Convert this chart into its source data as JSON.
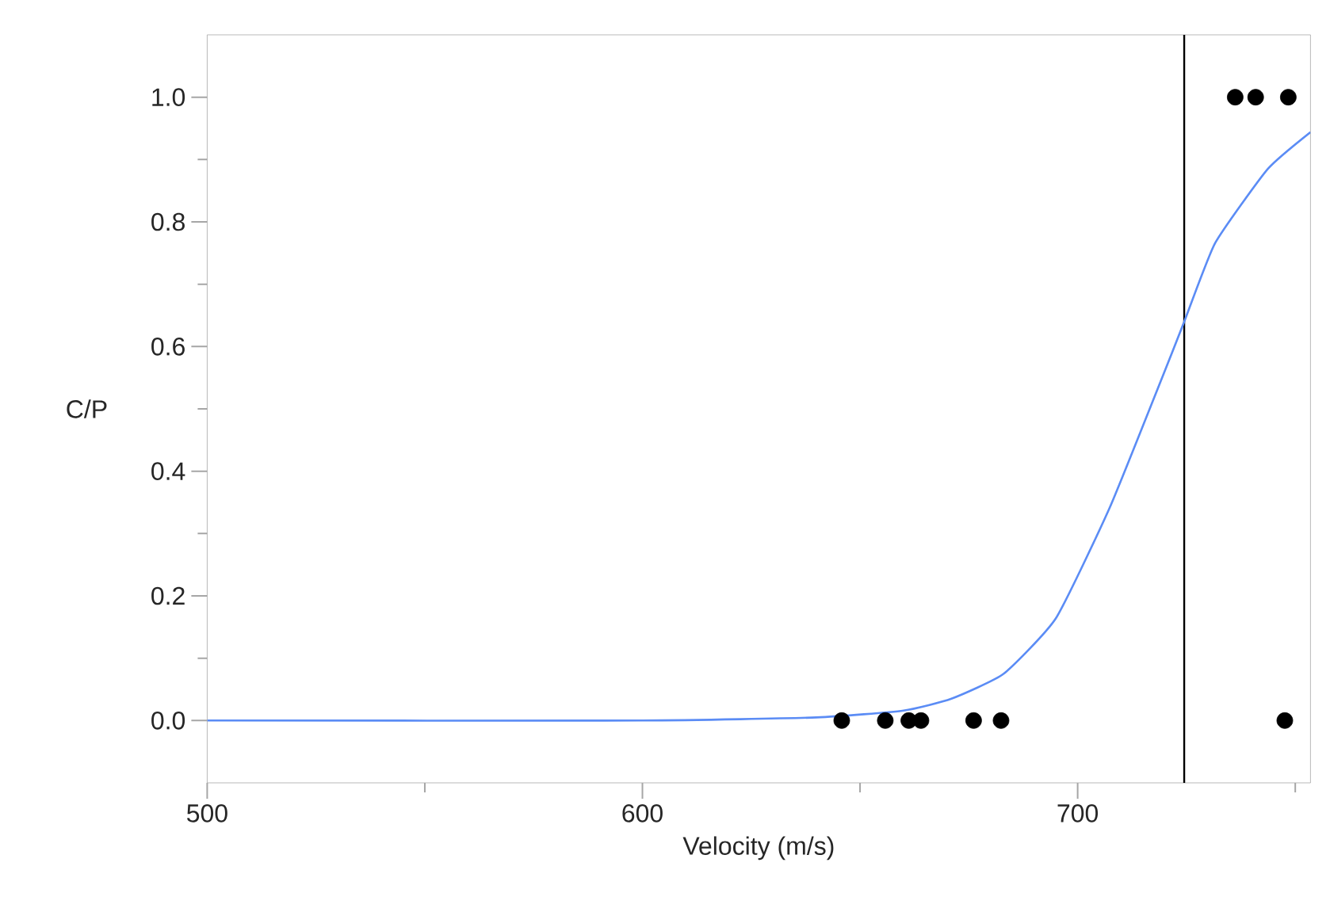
{
  "chart_data": {
    "type": "scatter",
    "xlabel": "Velocity (m/s)",
    "ylabel": "C/P",
    "xlim": [
      500,
      753.5
    ],
    "ylim": [
      -0.1,
      1.1
    ],
    "xticks": [
      500,
      {
        "value": 550,
        "label": null
      },
      600,
      {
        "value": 650,
        "label": null
      },
      700,
      {
        "value": 750,
        "label": null
      }
    ],
    "yticks": [
      {
        "value": 0,
        "label": "0.0"
      },
      {
        "value": 0.1,
        "label": null
      },
      {
        "value": 0.2,
        "label": "0.2"
      },
      {
        "value": 0.3,
        "label": null
      },
      {
        "value": 0.4,
        "label": "0.4"
      },
      {
        "value": 0.5,
        "label": null
      },
      {
        "value": 0.6,
        "label": "0.6"
      },
      {
        "value": 0.7,
        "label": null
      },
      {
        "value": 0.8,
        "label": "0.8"
      },
      {
        "value": 0.9,
        "label": null
      },
      {
        "value": 1.0,
        "label": "1.0"
      }
    ],
    "series": [
      {
        "type": "line",
        "color": "#5b8cf5",
        "marker": "none",
        "x": [
          500,
          600,
          640,
          660,
          671,
          683,
          695,
          707.4,
          719.4,
          724.5,
          731.6,
          743.7,
          753.5
        ],
        "values": [
          0,
          0,
          0.005,
          0.016,
          0.035,
          0.075,
          0.164,
          0.342,
          0.55,
          0.64,
          0.766,
          0.885,
          0.944
        ]
      },
      {
        "color": "#000000",
        "marker": "circle",
        "x": [
          645.8,
          655.8,
          661.2,
          664.0,
          676.1,
          682.4,
          747.6,
          736.2,
          740.9,
          748.4
        ],
        "values": [
          0,
          0,
          0,
          0,
          0,
          0,
          0,
          1,
          1,
          1
        ]
      }
    ],
    "ref_lines": [
      {
        "axis": "x",
        "value": 724.5,
        "color": "#000000"
      }
    ]
  }
}
